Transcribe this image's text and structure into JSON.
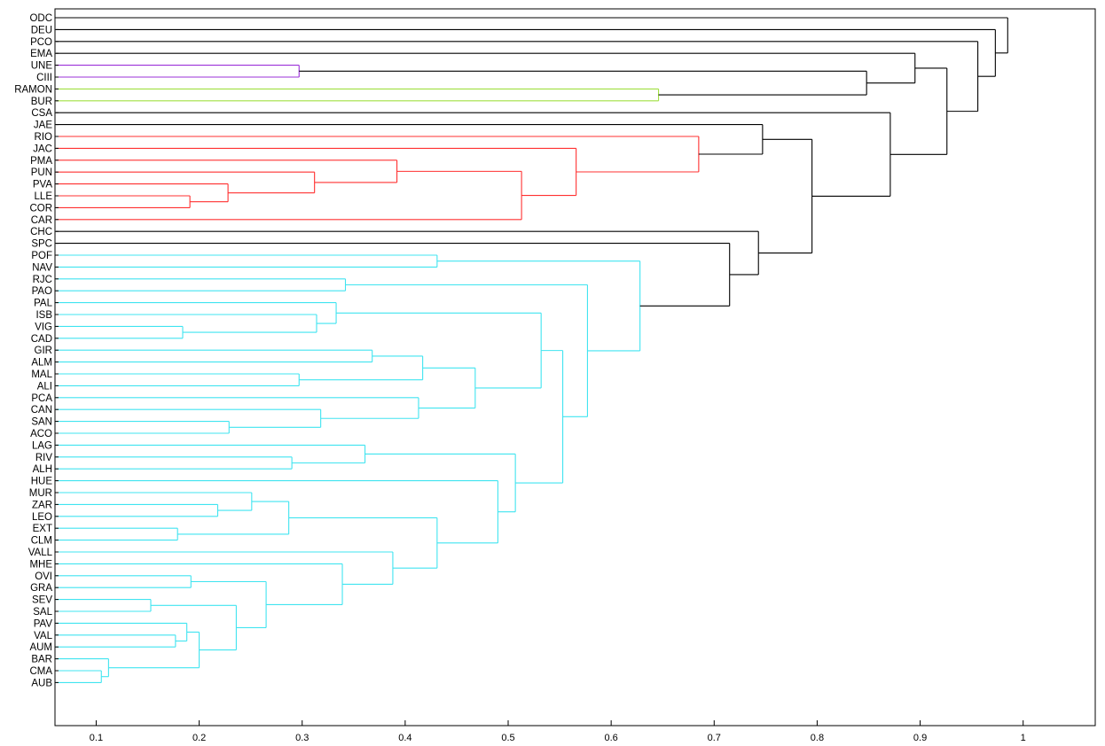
{
  "chart_data": {
    "type": "dendrogram",
    "orientation": "horizontal",
    "title": "",
    "xlabel": "",
    "ylabel": "",
    "xlim": [
      0.06,
      1.07
    ],
    "xticks": [
      0.1,
      0.2,
      0.3,
      0.4,
      0.5,
      0.6,
      0.7,
      0.8,
      0.9,
      1
    ],
    "xtick_labels": [
      "0.1",
      "0.2",
      "0.3",
      "0.4",
      "0.5",
      "0.6",
      "0.7",
      "0.8",
      "0.9",
      "1"
    ],
    "grid": false,
    "colors": {
      "default": "#000000",
      "purple": "#9b30d9",
      "green": "#a0e040",
      "red": "#ff3030",
      "cyan": "#40e4f0"
    },
    "leaves": [
      "ODC",
      "DEU",
      "PCO",
      "EMA",
      "UNE",
      "CIII",
      "RAMON",
      "BUR",
      "CSA",
      "JAE",
      "RIO",
      "JAC",
      "PMA",
      "PUN",
      "PVA",
      "LLE",
      "COR",
      "CAR",
      "CHC",
      "SPC",
      "POF",
      "NAV",
      "RJC",
      "PAO",
      "PAL",
      "ISB",
      "VIG",
      "CAD",
      "GIR",
      "ALM",
      "MAL",
      "ALI",
      "PCA",
      "CAN",
      "SAN",
      "ACO",
      "LAG",
      "RIV",
      "ALH",
      "HUE",
      "MUR",
      "ZAR",
      "LEO",
      "EXT",
      "CLM",
      "VALL",
      "MHE",
      "OVI",
      "GRA",
      "SEV",
      "SAL",
      "PAV",
      "VAL",
      "AUM",
      "BAR",
      "CMA",
      "AUB"
    ],
    "merges": [
      {
        "a": "CMA",
        "b": "AUB",
        "height": 0.105,
        "color": "cyan"
      },
      {
        "a": "BAR",
        "b": 0,
        "height": 0.112,
        "color": "cyan"
      },
      {
        "a": "SEV",
        "b": "SAL",
        "height": 0.153,
        "color": "cyan"
      },
      {
        "a": "VAL",
        "b": "AUM",
        "height": 0.177,
        "color": "cyan"
      },
      {
        "a": "EXT",
        "b": "CLM",
        "height": 0.179,
        "color": "cyan"
      },
      {
        "a": "VIG",
        "b": "CAD",
        "height": 0.184,
        "color": "cyan"
      },
      {
        "a": "PAV",
        "b": 3,
        "height": 0.188,
        "color": "cyan"
      },
      {
        "a": "LLE",
        "b": "COR",
        "height": 0.191,
        "color": "red"
      },
      {
        "a": "OVI",
        "b": "GRA",
        "height": 0.192,
        "color": "cyan"
      },
      {
        "a": 6,
        "b": 1,
        "height": 0.2,
        "color": "cyan"
      },
      {
        "a": "ZAR",
        "b": "LEO",
        "height": 0.218,
        "color": "cyan"
      },
      {
        "a": "PVA",
        "b": 7,
        "height": 0.228,
        "color": "red"
      },
      {
        "a": "SAN",
        "b": "ACO",
        "height": 0.229,
        "color": "cyan"
      },
      {
        "a": 2,
        "b": 9,
        "height": 0.236,
        "color": "cyan"
      },
      {
        "a": "MUR",
        "b": 10,
        "height": 0.251,
        "color": "cyan"
      },
      {
        "a": 8,
        "b": 13,
        "height": 0.265,
        "color": "cyan"
      },
      {
        "a": 14,
        "b": 4,
        "height": 0.287,
        "color": "cyan"
      },
      {
        "a": "RIV",
        "b": "ALH",
        "height": 0.29,
        "color": "cyan"
      },
      {
        "a": "UNE",
        "b": "CIII",
        "height": 0.297,
        "color": "purple"
      },
      {
        "a": "MAL",
        "b": "ALI",
        "height": 0.297,
        "color": "cyan"
      },
      {
        "a": "PUN",
        "b": 11,
        "height": 0.312,
        "color": "red"
      },
      {
        "a": "ISB",
        "b": 5,
        "height": 0.314,
        "color": "cyan"
      },
      {
        "a": "CAN",
        "b": 12,
        "height": 0.318,
        "color": "cyan"
      },
      {
        "a": "PAL",
        "b": 21,
        "height": 0.333,
        "color": "cyan"
      },
      {
        "a": "MHE",
        "b": 15,
        "height": 0.339,
        "color": "cyan"
      },
      {
        "a": "RJC",
        "b": "PAO",
        "height": 0.342,
        "color": "cyan"
      },
      {
        "a": "LAG",
        "b": 17,
        "height": 0.361,
        "color": "cyan"
      },
      {
        "a": "GIR",
        "b": "ALM",
        "height": 0.368,
        "color": "cyan"
      },
      {
        "a": "VALL",
        "b": 24,
        "height": 0.388,
        "color": "cyan"
      },
      {
        "a": "PMA",
        "b": 20,
        "height": 0.392,
        "color": "red"
      },
      {
        "a": "PCA",
        "b": 22,
        "height": 0.413,
        "color": "cyan"
      },
      {
        "a": 27,
        "b": 19,
        "height": 0.417,
        "color": "cyan"
      },
      {
        "a": 16,
        "b": 28,
        "height": 0.431,
        "color": "cyan"
      },
      {
        "a": "POF",
        "b": "NAV",
        "height": 0.431,
        "color": "cyan"
      },
      {
        "a": 31,
        "b": 30,
        "height": 0.468,
        "color": "cyan"
      },
      {
        "a": "HUE",
        "b": 32,
        "height": 0.49,
        "color": "cyan"
      },
      {
        "a": 26,
        "b": 35,
        "height": 0.507,
        "color": "cyan"
      },
      {
        "a": 29,
        "b": "CAR",
        "height": 0.513,
        "color": "red"
      },
      {
        "a": 23,
        "b": 34,
        "height": 0.532,
        "color": "cyan"
      },
      {
        "a": 38,
        "b": 36,
        "height": 0.553,
        "color": "cyan"
      },
      {
        "a": "JAC",
        "b": 37,
        "height": 0.566,
        "color": "red"
      },
      {
        "a": 25,
        "b": 39,
        "height": 0.577,
        "color": "cyan"
      },
      {
        "a": 33,
        "b": 41,
        "height": 0.628,
        "color": "cyan"
      },
      {
        "a": "RAMON",
        "b": "BUR",
        "height": 0.646,
        "color": "green"
      },
      {
        "a": "RIO",
        "b": 40,
        "height": 0.685,
        "color": "red"
      },
      {
        "a": "SPC",
        "b": 42,
        "height": 0.715,
        "color": "default"
      },
      {
        "a": "CHC",
        "b": 45,
        "height": 0.743,
        "color": "default"
      },
      {
        "a": "JAE",
        "b": 44,
        "height": 0.747,
        "color": "default"
      },
      {
        "a": 47,
        "b": 46,
        "height": 0.795,
        "color": "default"
      },
      {
        "a": 18,
        "b": 43,
        "height": 0.848,
        "color": "default"
      },
      {
        "a": "CSA",
        "b": 48,
        "height": 0.871,
        "color": "default"
      },
      {
        "a": "EMA",
        "b": 49,
        "height": 0.895,
        "color": "default"
      },
      {
        "a": 51,
        "b": 50,
        "height": 0.926,
        "color": "default"
      },
      {
        "a": "PCO",
        "b": 52,
        "height": 0.956,
        "color": "default"
      },
      {
        "a": "DEU",
        "b": 53,
        "height": 0.973,
        "color": "default"
      },
      {
        "a": "ODC",
        "b": 54,
        "height": 0.985,
        "color": "default"
      }
    ]
  }
}
